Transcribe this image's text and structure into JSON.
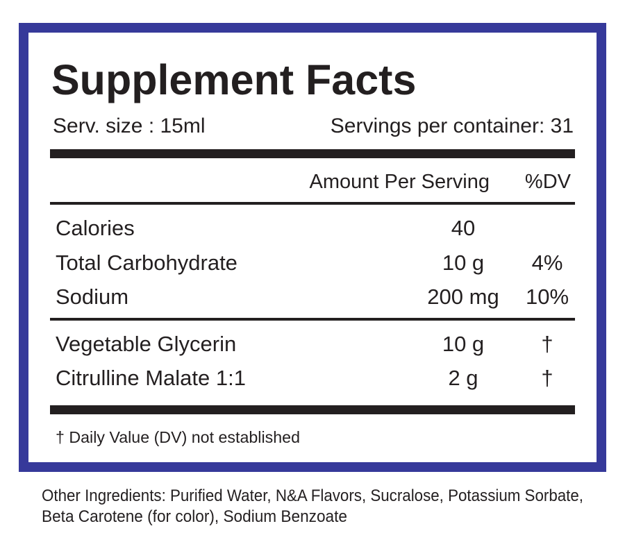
{
  "header": {
    "title": "Supplement Facts",
    "serving_size": "Serv. size : 15ml",
    "servings_per_container": "Servings per container: 31"
  },
  "table": {
    "columns": [
      "Amount Per Serving",
      "%DV"
    ],
    "rows": [
      [
        "Calories",
        "40",
        ""
      ],
      [
        "Total Carbohydrate",
        "10 g",
        "4%"
      ],
      [
        "Sodium",
        "200 mg",
        "10%"
      ],
      [
        "Vegetable Glycerin",
        "10 g",
        "†"
      ],
      [
        "Citrulline Malate 1:1",
        "2 g",
        "†"
      ]
    ]
  },
  "footnote": "† Daily Value (DV) not established",
  "other_ingredients": [
    "Other Ingredients: Purified Water, N&A Flavors, Sucralose, Potassium Sorbate,",
    "Beta Carotene (for color), Sodium Benzoate"
  ]
}
